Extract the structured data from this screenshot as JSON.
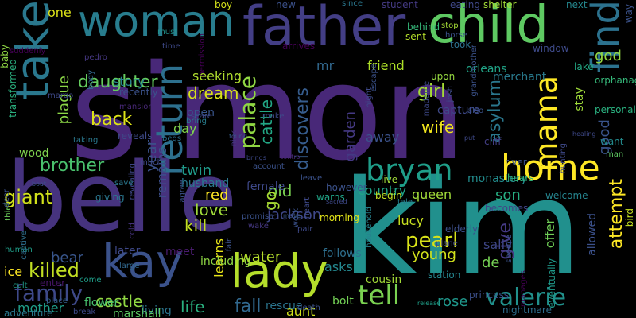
{
  "words": [
    {
      "text": "simon",
      "color": "#482878"
    },
    {
      "text": "belle",
      "color": "#46337e"
    },
    {
      "text": "kim",
      "color": "#21908d"
    },
    {
      "text": "child",
      "color": "#5ec962"
    },
    {
      "text": "father",
      "color": "#433e85"
    },
    {
      "text": "woman",
      "color": "#287d8e"
    },
    {
      "text": "take",
      "color": "#2a788e"
    },
    {
      "text": "home",
      "color": "#fde725"
    },
    {
      "text": "bryan",
      "color": "#1f9e89"
    },
    {
      "text": "find",
      "color": "#2c728e"
    },
    {
      "text": "lady",
      "color": "#b5de2b"
    },
    {
      "text": "kay",
      "color": "#3b528b"
    },
    {
      "text": "valerie",
      "color": "#21918c"
    },
    {
      "text": "return",
      "color": "#2d708e"
    },
    {
      "text": "mama",
      "color": "#fde725"
    },
    {
      "text": "palace",
      "color": "#90d743"
    },
    {
      "text": "tell",
      "color": "#7ad151"
    },
    {
      "text": "family",
      "color": "#3e4989"
    },
    {
      "text": "daughter",
      "color": "#65cb5e"
    },
    {
      "text": "brother",
      "color": "#4ac16d"
    },
    {
      "text": "pearl",
      "color": "#d8e219"
    },
    {
      "text": "killed",
      "color": "#c2df23"
    },
    {
      "text": "god",
      "color": "#95d840"
    },
    {
      "text": "attempt",
      "color": "#fde725"
    },
    {
      "text": "asylum",
      "color": "#2a778e"
    },
    {
      "text": "giant",
      "color": "#d2e21b"
    },
    {
      "text": "back",
      "color": "#dde318"
    },
    {
      "text": "girl",
      "color": "#a5db36"
    },
    {
      "text": "wife",
      "color": "#f1e51d"
    },
    {
      "text": "discovers",
      "color": "#365c8d"
    },
    {
      "text": "cattle",
      "color": "#22a785"
    },
    {
      "text": "dream",
      "color": "#d8e219"
    },
    {
      "text": "water",
      "color": "#b5de2b"
    },
    {
      "text": "young",
      "color": "#d2e21b"
    },
    {
      "text": "castle",
      "color": "#90d743"
    },
    {
      "text": "red",
      "color": "#fde725"
    },
    {
      "text": "kill",
      "color": "#c2df23"
    },
    {
      "text": "love",
      "color": "#9fda3a"
    },
    {
      "text": "twin",
      "color": "#1f9a8a"
    },
    {
      "text": "old",
      "color": "#7ad151"
    },
    {
      "text": "go",
      "color": "#a8db34"
    },
    {
      "text": "fall",
      "color": "#31688e"
    },
    {
      "text": "life",
      "color": "#2ab07f"
    },
    {
      "text": "rose",
      "color": "#1f978b"
    },
    {
      "text": "bear",
      "color": "#39568c"
    },
    {
      "text": "plague",
      "color": "#8bd646"
    },
    {
      "text": "garden",
      "color": "#443983"
    },
    {
      "text": "give",
      "color": "#443983"
    },
    {
      "text": "son",
      "color": "#26ad81"
    },
    {
      "text": "mother",
      "color": "#1f9e89"
    },
    {
      "text": "ice",
      "color": "#fde725"
    },
    {
      "text": "one",
      "color": "#dde318"
    },
    {
      "text": "mr",
      "color": "#31688e"
    },
    {
      "text": "friend",
      "color": "#ade028"
    },
    {
      "text": "orleans",
      "color": "#20a386"
    },
    {
      "text": "merchant",
      "color": "#297b8e"
    },
    {
      "text": "stay",
      "color": "#9fda3a"
    },
    {
      "text": "capture",
      "color": "#3e4989"
    },
    {
      "text": "away",
      "color": "#3b528b"
    },
    {
      "text": "country",
      "color": "#20a486"
    },
    {
      "text": "queen",
      "color": "#a0da39"
    },
    {
      "text": "monastery",
      "color": "#228c8d"
    },
    {
      "text": "lucy",
      "color": "#c8e020"
    },
    {
      "text": "sally",
      "color": "#3f4788"
    },
    {
      "text": "de",
      "color": "#75d054"
    },
    {
      "text": "offer",
      "color": "#70cf57"
    },
    {
      "text": "good",
      "color": "#3a548c"
    },
    {
      "text": "seeking",
      "color": "#b0dd2f"
    },
    {
      "text": "story",
      "color": "#26828e"
    },
    {
      "text": "open",
      "color": "#39558c"
    },
    {
      "text": "day",
      "color": "#7fd34e"
    },
    {
      "text": "year",
      "color": "#3b528b"
    },
    {
      "text": "remains",
      "color": "#3c4f8a"
    },
    {
      "text": "jackson",
      "color": "#3f4889"
    },
    {
      "text": "meet",
      "color": "#481b6d"
    },
    {
      "text": "learns",
      "color": "#e7e419"
    },
    {
      "text": "follows",
      "color": "#2e6f8e"
    },
    {
      "text": "asks",
      "color": "#24878e"
    },
    {
      "text": "cousin",
      "color": "#a2da37"
    },
    {
      "text": "bolt",
      "color": "#73d055"
    },
    {
      "text": "aunt",
      "color": "#d0e11c"
    },
    {
      "text": "rescue",
      "color": "#2b758e"
    },
    {
      "text": "wood",
      "color": "#7fd34e"
    },
    {
      "text": "later",
      "color": "#3e4989"
    },
    {
      "text": "flower",
      "color": "#48c16e"
    },
    {
      "text": "living",
      "color": "#2b748e"
    },
    {
      "text": "marshall",
      "color": "#5ec962"
    },
    {
      "text": "female",
      "color": "#3e4989"
    },
    {
      "text": "husband",
      "color": "#2a788e"
    },
    {
      "text": "including",
      "color": "#8fd744"
    },
    {
      "text": "boy",
      "color": "#d5e21a"
    },
    {
      "text": "new",
      "color": "#3b518b"
    },
    {
      "text": "since",
      "color": "#2a778e"
    },
    {
      "text": "student",
      "color": "#443a83"
    },
    {
      "text": "shelter",
      "color": "#a2da37"
    },
    {
      "text": "next",
      "color": "#24878e"
    },
    {
      "text": "eating",
      "color": "#3f4889"
    },
    {
      "text": "behind",
      "color": "#35b779"
    },
    {
      "text": "sent",
      "color": "#b5de2b"
    },
    {
      "text": "stop",
      "color": "#a5db36"
    },
    {
      "text": "took",
      "color": "#2d708e"
    },
    {
      "text": "window",
      "color": "#3e4a89"
    },
    {
      "text": "lake",
      "color": "#22a884"
    },
    {
      "text": "arrives",
      "color": "#440154"
    },
    {
      "text": "upon",
      "color": "#95d840"
    },
    {
      "text": "put",
      "color": "#3e4989"
    },
    {
      "text": "cliff",
      "color": "#433e85"
    },
    {
      "text": "live",
      "color": "#a0da39"
    },
    {
      "text": "river",
      "color": "#3b528b"
    },
    {
      "text": "hears",
      "color": "#31b57b"
    },
    {
      "text": "however",
      "color": "#3b528b"
    },
    {
      "text": "warns",
      "color": "#20a386"
    },
    {
      "text": "begin",
      "color": "#c2df23"
    },
    {
      "text": "welcome",
      "color": "#25848e"
    },
    {
      "text": "becomes",
      "color": "#414487"
    },
    {
      "text": "morning",
      "color": "#e2e418"
    },
    {
      "text": "elderly",
      "color": "#3c4f8a"
    },
    {
      "text": "tale",
      "color": "#277f8e"
    },
    {
      "text": "plane",
      "color": "#3f4889"
    },
    {
      "text": "princess",
      "color": "#3c508b"
    },
    {
      "text": "station",
      "color": "#25858e"
    },
    {
      "text": "release",
      "color": "#1f9f88"
    },
    {
      "text": "nightmare",
      "color": "#2e6e8e"
    },
    {
      "text": "eventually",
      "color": "#1f998a"
    },
    {
      "text": "allowed",
      "color": "#3b518b"
    },
    {
      "text": "bird",
      "color": "#c5e021"
    },
    {
      "text": "orphanage",
      "color": "#35b779"
    },
    {
      "text": "personality",
      "color": "#2ab07f"
    },
    {
      "text": "want",
      "color": "#238a8d"
    },
    {
      "text": "man",
      "color": "#5ec962"
    },
    {
      "text": "way",
      "color": "#3b528b"
    },
    {
      "text": "baby",
      "color": "#8fd744"
    },
    {
      "text": "transformed",
      "color": "#2ab07f"
    },
    {
      "text": "suddenly",
      "color": "#440154"
    },
    {
      "text": "recently",
      "color": "#3b528b"
    },
    {
      "text": "mansion",
      "color": "#482878"
    },
    {
      "text": "reveals",
      "color": "#3e4a89"
    },
    {
      "text": "human",
      "color": "#1f9e89"
    },
    {
      "text": "taking",
      "color": "#2a788e"
    },
    {
      "text": "boat",
      "color": "#3b528b"
    },
    {
      "text": "thief",
      "color": "#6ccd5a"
    },
    {
      "text": "captive",
      "color": "#2e6f8e"
    },
    {
      "text": "giving",
      "color": "#2a768e"
    },
    {
      "text": "revealing",
      "color": "#3f4788"
    },
    {
      "text": "save",
      "color": "#2a788e"
    },
    {
      "text": "cold",
      "color": "#46337e"
    },
    {
      "text": "place",
      "color": "#35608d"
    },
    {
      "text": "adventure",
      "color": "#2a788e"
    },
    {
      "text": "break",
      "color": "#3e4989"
    },
    {
      "text": "come",
      "color": "#1f9e89"
    },
    {
      "text": "enter",
      "color": "#481567"
    },
    {
      "text": "cult",
      "color": "#1f9e89"
    },
    {
      "text": "deer",
      "color": "#3b528b"
    },
    {
      "text": "permission",
      "color": "#440154"
    },
    {
      "text": "time",
      "color": "#3e4989"
    },
    {
      "text": "must",
      "color": "#21918c"
    },
    {
      "text": "pedro",
      "color": "#453781"
    },
    {
      "text": "body",
      "color": "#31688e"
    },
    {
      "text": "margo",
      "color": "#3e4989"
    },
    {
      "text": "bring",
      "color": "#287d8e"
    },
    {
      "text": "scare",
      "color": "#3e4989"
    },
    {
      "text": "begs",
      "color": "#2d708e"
    },
    {
      "text": "make",
      "color": "#3e4989"
    },
    {
      "text": "found",
      "color": "#35608d"
    },
    {
      "text": "nick",
      "color": "#453781"
    },
    {
      "text": "account",
      "color": "#3b528b"
    },
    {
      "text": "control",
      "color": "#482878"
    },
    {
      "text": "promise",
      "color": "#3b528b"
    },
    {
      "text": "wake",
      "color": "#453781"
    },
    {
      "text": "work",
      "color": "#3b528b"
    },
    {
      "text": "pair",
      "color": "#3e4989"
    },
    {
      "text": "death",
      "color": "#3b528b"
    },
    {
      "text": "heart",
      "color": "#3e4989"
    },
    {
      "text": "move",
      "color": "#39568c"
    },
    {
      "text": "household",
      "color": "#26828e"
    },
    {
      "text": "sacred",
      "color": "#3e4989"
    },
    {
      "text": "seduce",
      "color": "#3b528b"
    },
    {
      "text": "manages",
      "color": "#440154"
    },
    {
      "text": "also",
      "color": "#3b528b"
    },
    {
      "text": "healing",
      "color": "#3e4989"
    },
    {
      "text": "grandmother",
      "color": "#3b528b"
    },
    {
      "text": "josh",
      "color": "#3e4989"
    },
    {
      "text": "horse",
      "color": "#3b528b"
    },
    {
      "text": "madame",
      "color": "#3e4989"
    },
    {
      "text": "escape",
      "color": "#3b528b"
    },
    {
      "text": "night",
      "color": "#3e4989"
    },
    {
      "text": "agree",
      "color": "#3b528b"
    },
    {
      "text": "leave",
      "color": "#3b528b"
    },
    {
      "text": "brings",
      "color": "#3e4989"
    },
    {
      "text": "fair",
      "color": "#3b528b"
    },
    {
      "text": "hunting",
      "color": "#3e4989"
    },
    {
      "text": "large",
      "color": "#31688e"
    },
    {
      "text": "much",
      "color": "#3e4989"
    },
    {
      "text": "hospital",
      "color": "#3b528b"
    },
    {
      "text": "see",
      "color": "#3e4989"
    }
  ]
}
